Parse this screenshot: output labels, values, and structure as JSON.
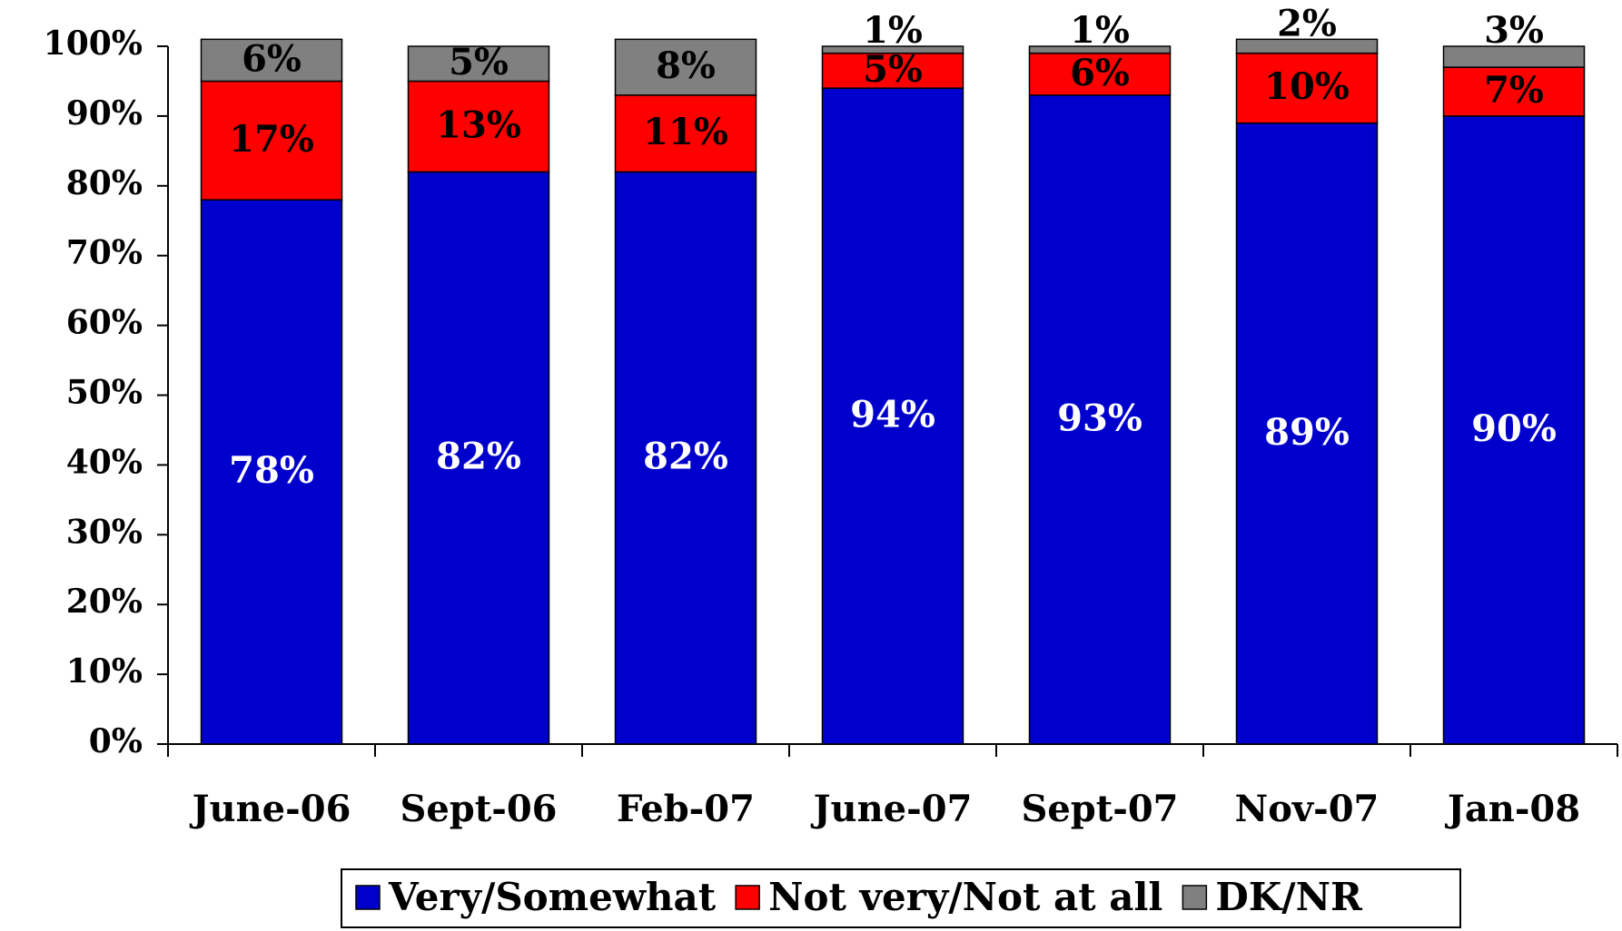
{
  "chart_data": {
    "type": "stacked_bar",
    "categories": [
      "June-06",
      "Sept-06",
      "Feb-07",
      "June-07",
      "Sept-07",
      "Nov-07",
      "Jan-08"
    ],
    "series": [
      {
        "name": "Very/Somewhat",
        "color": "#0000cc",
        "values": [
          78,
          82,
          82,
          94,
          93,
          89,
          90
        ],
        "value_labels": [
          "78%",
          "82%",
          "82%",
          "94%",
          "93%",
          "89%",
          "90%"
        ]
      },
      {
        "name": "Not very/Not at all",
        "color": "#ff0000",
        "values": [
          17,
          13,
          11,
          5,
          6,
          10,
          7
        ],
        "value_labels": [
          "17%",
          "13%",
          "11%",
          "5%",
          "6%",
          "10%",
          "7%"
        ]
      },
      {
        "name": "DK/NR",
        "color": "#808080",
        "values": [
          6,
          5,
          8,
          1,
          1,
          2,
          3
        ],
        "value_labels": [
          "6%",
          "5%",
          "8%",
          "1%",
          "1%",
          "2%",
          "3%"
        ]
      }
    ],
    "ylim": [
      0,
      100
    ],
    "yticks": [
      {
        "value": 0,
        "label": "0%"
      },
      {
        "value": 10,
        "label": "10%"
      },
      {
        "value": 20,
        "label": "20%"
      },
      {
        "value": 30,
        "label": "30%"
      },
      {
        "value": 40,
        "label": "40%"
      },
      {
        "value": 50,
        "label": "50%"
      },
      {
        "value": 60,
        "label": "60%"
      },
      {
        "value": 70,
        "label": "70%"
      },
      {
        "value": 80,
        "label": "80%"
      },
      {
        "value": 90,
        "label": "90%"
      },
      {
        "value": 100,
        "label": "100%"
      }
    ],
    "legend": "bottom"
  }
}
